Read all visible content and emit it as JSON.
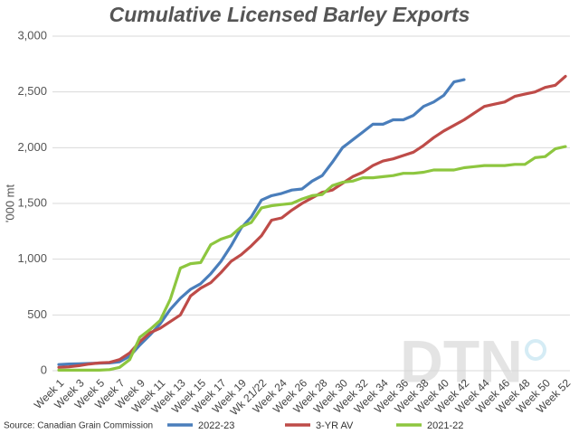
{
  "chart_data": {
    "type": "line",
    "title": "Cumulative Licensed Barley Exports",
    "ylabel": "'000 mt",
    "source": "Source: Canadian Grain Commission",
    "watermark": "DTN",
    "categories": [
      "Week 1",
      null,
      "Week 3",
      null,
      "Week 5",
      null,
      "Week 7",
      null,
      "Week 9",
      null,
      "Week 11",
      null,
      "Week 13",
      null,
      "Week 15",
      null,
      "Week 17",
      null,
      "Week 19",
      null,
      "Wk 21/22",
      null,
      "Week 24",
      null,
      "Week 26",
      null,
      "Week 28",
      null,
      "Week 30",
      null,
      "Week 32",
      null,
      "Week 34",
      null,
      "Week 36",
      null,
      "Week 38",
      null,
      "Week 40",
      null,
      "Week 42",
      null,
      "Week 44",
      null,
      "Week 46",
      null,
      "Week 48",
      null,
      "Week 50",
      null,
      "Week 52"
    ],
    "ylim": [
      0,
      3000
    ],
    "yticks": [
      0,
      500,
      {
        "value": 1000,
        "label": "1,000"
      },
      {
        "value": 1500,
        "label": "1,500"
      },
      {
        "value": 2000,
        "label": "2,000"
      },
      {
        "value": 2500,
        "label": "2,500"
      },
      {
        "value": 3000,
        "label": "3,000"
      }
    ],
    "grid": true,
    "legend": "bottom",
    "series": [
      {
        "name": "2022-23",
        "color": "#4a7ebb",
        "values": [
          55,
          60,
          62,
          65,
          68,
          70,
          80,
          130,
          230,
          320,
          420,
          550,
          650,
          730,
          780,
          870,
          980,
          1120,
          1280,
          1380,
          1530,
          1570,
          1590,
          1620,
          1630,
          1700,
          1750,
          1870,
          2000,
          2070,
          2140,
          2210,
          2210,
          2250,
          2250,
          2290,
          2370,
          2410,
          2470,
          2590,
          2610,
          null,
          null,
          null,
          null,
          null,
          null,
          null,
          null,
          null,
          null
        ]
      },
      {
        "name": "3-YR AV",
        "color": "#be4b48",
        "values": [
          30,
          35,
          45,
          60,
          70,
          75,
          100,
          160,
          260,
          340,
          380,
          440,
          500,
          670,
          740,
          790,
          880,
          980,
          1040,
          1120,
          1210,
          1350,
          1370,
          1440,
          1500,
          1550,
          1600,
          1620,
          1680,
          1740,
          1780,
          1840,
          1880,
          1900,
          1930,
          1960,
          2020,
          2090,
          2150,
          2200,
          2250,
          2310,
          2370,
          2390,
          2410,
          2460,
          2480,
          2500,
          2540,
          2560,
          2640
        ]
      },
      {
        "name": "2021-22",
        "color": "#8dc63f",
        "values": [
          5,
          5,
          5,
          5,
          5,
          10,
          30,
          100,
          300,
          370,
          450,
          640,
          920,
          960,
          970,
          1130,
          1180,
          1210,
          1290,
          1330,
          1460,
          1480,
          1490,
          1500,
          1540,
          1570,
          1580,
          1660,
          1690,
          1700,
          1730,
          1730,
          1740,
          1750,
          1770,
          1770,
          1780,
          1800,
          1800,
          1800,
          1820,
          1830,
          1840,
          1840,
          1840,
          1850,
          1850,
          1910,
          1920,
          1990,
          2010
        ]
      }
    ]
  }
}
